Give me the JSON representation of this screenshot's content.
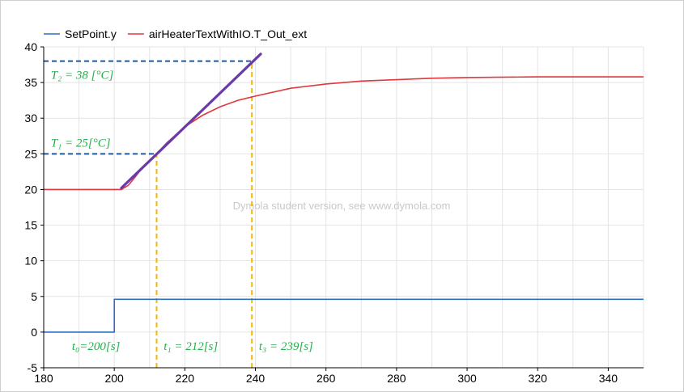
{
  "chart_data": {
    "type": "line",
    "x_range": [
      180,
      350
    ],
    "y_range": [
      -5,
      40
    ],
    "x_ticks": [
      180,
      200,
      220,
      240,
      260,
      280,
      300,
      320,
      340
    ],
    "y_ticks": [
      -5,
      0,
      5,
      10,
      15,
      20,
      25,
      30,
      35,
      40
    ],
    "grid": true,
    "legend_position": "top-left",
    "series": [
      {
        "name": "SetPoint.y",
        "color": "#2f6fc1",
        "x": [
          180,
          200,
          200,
          350
        ],
        "y": [
          0,
          0,
          4.6,
          4.6
        ]
      },
      {
        "name": "airHeaterTextWithIO.T_Out_ext",
        "color": "#e0383c",
        "x": [
          180,
          202,
          204,
          206,
          208,
          210,
          212,
          215,
          220,
          225,
          230,
          235,
          240,
          250,
          260,
          270,
          280,
          290,
          300,
          320,
          340,
          350
        ],
        "y": [
          20.0,
          20.0,
          20.6,
          21.8,
          23.1,
          24.1,
          25.0,
          26.6,
          28.8,
          30.4,
          31.6,
          32.5,
          33.1,
          34.2,
          34.8,
          35.2,
          35.4,
          35.6,
          35.7,
          35.8,
          35.8,
          35.8
        ]
      }
    ],
    "annotations": {
      "tangent_line": {
        "color": "#6a3aa8",
        "x": [
          202,
          241.5
        ],
        "y": [
          20.2,
          39.0
        ]
      },
      "horizontal_dashed": [
        {
          "y": 38,
          "x_from": 180,
          "x_to": 239,
          "color": "#1f5aa0"
        },
        {
          "y": 25,
          "x_from": 180,
          "x_to": 212,
          "color": "#1f5aa0"
        }
      ],
      "vertical_dashed": [
        {
          "x": 212,
          "y_from": -5,
          "y_to": 25,
          "color": "#f5b800"
        },
        {
          "x": 239,
          "y_from": -5,
          "y_to": 38,
          "color": "#f5b800"
        }
      ],
      "labels": [
        {
          "text": "T₂ = 38 [°C]",
          "x": 182,
          "y": 35.5
        },
        {
          "text": "T₁ = 25[°C]",
          "x": 182,
          "y": 26.0
        },
        {
          "text": "t₀=200[s]",
          "x": 188,
          "y": -2.5
        },
        {
          "text": "t₁ = 212[s]",
          "x": 214,
          "y": -2.5
        },
        {
          "text": "t₃ = 239[s]",
          "x": 241,
          "y": -2.5
        }
      ]
    },
    "watermark": "Dymola student version, see www.dymola.com"
  }
}
